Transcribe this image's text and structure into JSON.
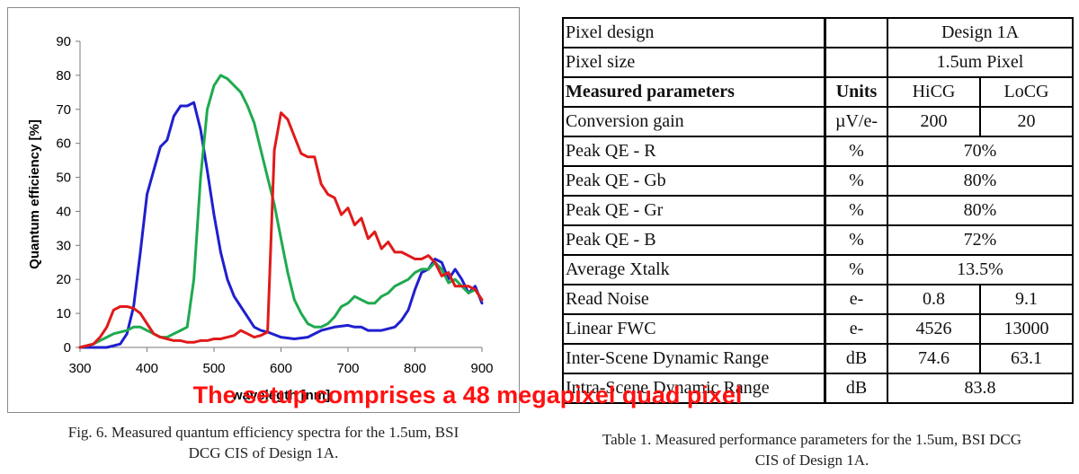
{
  "chart_data": {
    "type": "line",
    "xlabel": "wavelegth [nm]",
    "ylabel": "Quantum efficiency [%]",
    "xlim": [
      300,
      900
    ],
    "ylim": [
      0,
      90
    ],
    "xticks": [
      300,
      400,
      500,
      600,
      700,
      800,
      900
    ],
    "yticks": [
      0,
      10,
      20,
      30,
      40,
      50,
      60,
      70,
      80,
      90
    ],
    "grid": false,
    "series": [
      {
        "color": "#1f1fcf",
        "x": [
          300,
          320,
          340,
          360,
          370,
          380,
          390,
          400,
          410,
          420,
          430,
          440,
          450,
          460,
          470,
          480,
          490,
          500,
          510,
          520,
          530,
          540,
          550,
          560,
          570,
          580,
          600,
          620,
          640,
          660,
          680,
          700,
          710,
          720,
          730,
          740,
          750,
          760,
          770,
          780,
          790,
          800,
          810,
          820,
          830,
          840,
          850,
          860,
          870,
          880,
          890,
          900
        ],
        "y": [
          0,
          0,
          0,
          1,
          4,
          12,
          28,
          45,
          52,
          59,
          61,
          68,
          71,
          71,
          72,
          64,
          52,
          39,
          28,
          20,
          15,
          12,
          9,
          6,
          5,
          4.5,
          3,
          2.5,
          3,
          5,
          6,
          6.5,
          6,
          6,
          5,
          5,
          5,
          5.5,
          6,
          8,
          11,
          17,
          22,
          23,
          26,
          25,
          20,
          23,
          20,
          16,
          18,
          13
        ]
      },
      {
        "color": "#1faa4f",
        "x": [
          300,
          320,
          330,
          340,
          350,
          360,
          370,
          380,
          390,
          400,
          410,
          420,
          430,
          440,
          450,
          460,
          470,
          480,
          490,
          500,
          510,
          520,
          530,
          540,
          550,
          560,
          570,
          580,
          590,
          600,
          610,
          620,
          630,
          640,
          650,
          660,
          670,
          680,
          690,
          700,
          710,
          720,
          730,
          740,
          750,
          760,
          770,
          780,
          790,
          800,
          810,
          820,
          830,
          840,
          850,
          860,
          870,
          880,
          890,
          900
        ],
        "y": [
          0,
          1,
          2,
          3,
          4,
          4.5,
          5,
          6,
          6,
          5,
          4,
          3,
          3,
          4,
          5,
          6,
          20,
          50,
          70,
          77,
          80,
          79,
          77,
          75,
          71,
          66,
          58,
          50,
          42,
          32,
          22,
          14,
          10,
          7,
          6,
          6,
          7,
          9,
          12,
          13,
          15,
          14,
          13,
          13,
          15,
          16,
          18,
          19,
          20,
          22,
          23,
          23,
          25,
          23,
          19,
          20,
          18,
          16,
          17,
          14
        ]
      },
      {
        "color": "#e01a1a",
        "x": [
          300,
          320,
          330,
          340,
          350,
          360,
          370,
          380,
          390,
          400,
          410,
          420,
          430,
          440,
          450,
          460,
          470,
          480,
          490,
          500,
          510,
          520,
          530,
          540,
          550,
          560,
          570,
          580,
          590,
          600,
          610,
          620,
          630,
          640,
          650,
          660,
          670,
          680,
          690,
          700,
          710,
          720,
          730,
          740,
          750,
          760,
          770,
          780,
          790,
          800,
          810,
          820,
          830,
          840,
          850,
          860,
          870,
          880,
          890,
          900
        ],
        "y": [
          0,
          1,
          3,
          6,
          11,
          12,
          12,
          11.5,
          10,
          7,
          4,
          3,
          2.5,
          2,
          2,
          1.5,
          1.5,
          2,
          2,
          2.5,
          2.5,
          3,
          3.5,
          5,
          4,
          3,
          3.5,
          4.5,
          58,
          69,
          67,
          62,
          57,
          56,
          56,
          48,
          45,
          44,
          39,
          41,
          36,
          38,
          32,
          34,
          29,
          31,
          28,
          28,
          27,
          26,
          26,
          27,
          25,
          21,
          22,
          18,
          18,
          18,
          17,
          14
        ]
      }
    ]
  },
  "fig_caption": {
    "line1": "Fig. 6. Measured quantum efficiency spectra for the 1.5um, BSI",
    "line2": "DCG CIS of Design 1A."
  },
  "overlay_text": "The setup comprises a 48 megapixel quad pixel",
  "table": {
    "rows": [
      {
        "label": "Pixel design",
        "unit": "",
        "span": "Design 1A"
      },
      {
        "label": "Pixel size",
        "unit": "",
        "span": "1.5um Pixel"
      },
      {
        "label": "Measured parameters",
        "unit": "Units",
        "v1": "HiCG",
        "v2": "LoCG",
        "header": true
      },
      {
        "label": "Conversion gain",
        "unit": "µV/e-",
        "v1": "200",
        "v2": "20"
      },
      {
        "label": "Peak QE - R",
        "unit": "%",
        "span": "70%"
      },
      {
        "label": "Peak QE - Gb",
        "unit": "%",
        "span": "80%"
      },
      {
        "label": "Peak QE - Gr",
        "unit": "%",
        "span": "80%"
      },
      {
        "label": "Peak QE - B",
        "unit": "%",
        "span": "72%"
      },
      {
        "label": "Average Xtalk",
        "unit": "%",
        "span": "13.5%"
      },
      {
        "label": "Read Noise",
        "unit": "e-",
        "v1": "0.8",
        "v2": "9.1"
      },
      {
        "label": "Linear FWC",
        "unit": "e-",
        "v1": "4526",
        "v2": "13000"
      },
      {
        "label": "Inter-Scene Dynamic Range",
        "unit": "dB",
        "v1": "74.6",
        "v2": "63.1"
      },
      {
        "label": "Intra-Scene Dynamic Range",
        "unit": "dB",
        "span": "83.8"
      }
    ]
  },
  "table_caption": {
    "line1": "Table 1. Measured performance parameters for the 1.5um, BSI DCG",
    "line2": "CIS of Design 1A."
  }
}
